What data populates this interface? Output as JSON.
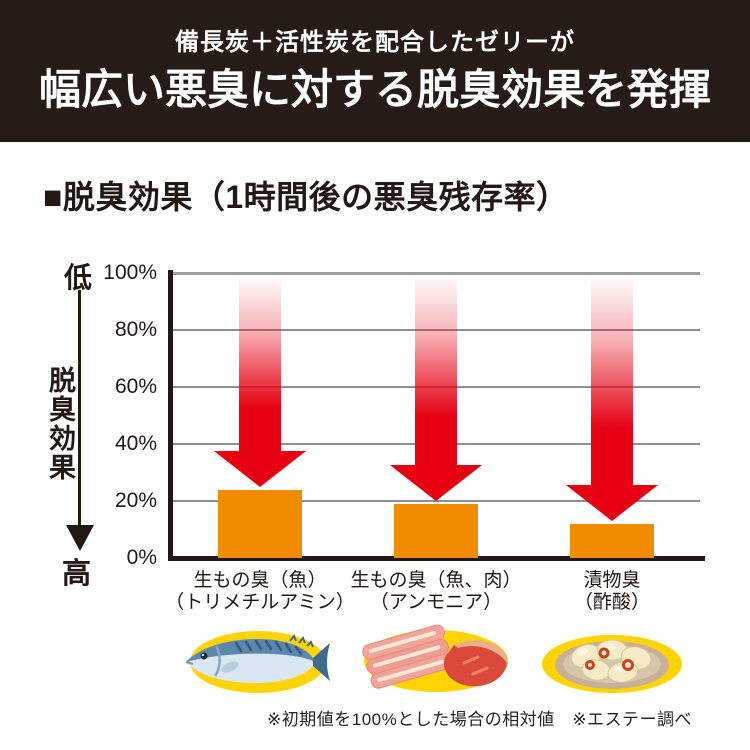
{
  "header": {
    "line1": "備長炭＋活性炭を配合したゼリーが",
    "line2": "幅広い悪臭に対する脱臭効果を発揮",
    "bg_color": "#261b16",
    "text_color": "#ffffff"
  },
  "chart": {
    "title": "■脱臭効果（1時間後の悪臭残存率）",
    "left_axis": {
      "top_label": "低",
      "axis_label": "脱臭効果",
      "bottom_label": "高"
    }
  },
  "chart_data": {
    "type": "bar",
    "title": "脱臭効果（1時間後の悪臭残存率）",
    "categories": [
      {
        "line1": "生もの臭（魚）",
        "line2": "（トリメチルアミン）",
        "icon": "fish-icon"
      },
      {
        "line1": "生もの臭（魚、肉）",
        "line2": "（アンモニア）",
        "icon": "meat-icon"
      },
      {
        "line1": "漬物臭",
        "line2": "（酢酸）",
        "icon": "pickles-icon"
      }
    ],
    "values": [
      24,
      19,
      12
    ],
    "unit": "%",
    "y_ticks": [
      "100%",
      "80%",
      "60%",
      "40%",
      "20%",
      "0%"
    ],
    "ylim": [
      0,
      100
    ],
    "grid": true,
    "legend": false,
    "bar_color": "#ef8c00",
    "arrow_color": "#e60012"
  },
  "footnote": "※初期値を100%とした場合の相対値　※エステー調べ"
}
